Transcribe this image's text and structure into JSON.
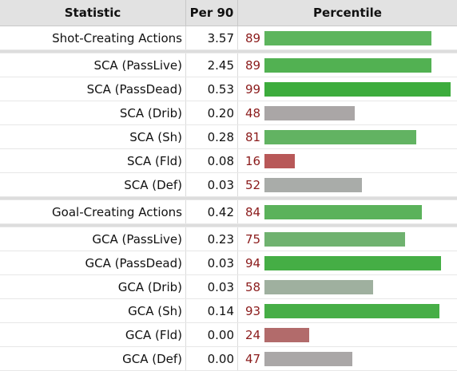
{
  "table": {
    "headers": {
      "statistic": "Statistic",
      "per90": "Per 90",
      "percentile": "Percentile"
    },
    "groups": [
      {
        "rows": [
          {
            "stat": "Shot-Creating Actions",
            "per90": "3.57",
            "percentile": 89,
            "color": "#5db55d"
          }
        ]
      },
      {
        "rows": [
          {
            "stat": "SCA (PassLive)",
            "per90": "2.45",
            "percentile": 89,
            "color": "#52b152"
          },
          {
            "stat": "SCA (PassDead)",
            "per90": "0.53",
            "percentile": 99,
            "color": "#3cac3c"
          },
          {
            "stat": "SCA (Drib)",
            "per90": "0.20",
            "percentile": 48,
            "color": "#aaa6a6"
          },
          {
            "stat": "SCA (Sh)",
            "per90": "0.28",
            "percentile": 81,
            "color": "#62b362"
          },
          {
            "stat": "SCA (Fld)",
            "per90": "0.08",
            "percentile": 16,
            "color": "#b85858"
          },
          {
            "stat": "SCA (Def)",
            "per90": "0.03",
            "percentile": 52,
            "color": "#a9aca9"
          }
        ]
      },
      {
        "rows": [
          {
            "stat": "Goal-Creating Actions",
            "per90": "0.42",
            "percentile": 84,
            "color": "#5bb25b"
          }
        ]
      },
      {
        "rows": [
          {
            "stat": "GCA (PassLive)",
            "per90": "0.23",
            "percentile": 75,
            "color": "#6fb26f"
          },
          {
            "stat": "GCA (PassDead)",
            "per90": "0.03",
            "percentile": 94,
            "color": "#45ae45"
          },
          {
            "stat": "GCA (Drib)",
            "per90": "0.03",
            "percentile": 58,
            "color": "#9fb09f"
          },
          {
            "stat": "GCA (Sh)",
            "per90": "0.14",
            "percentile": 93,
            "color": "#46ae46"
          },
          {
            "stat": "GCA (Fld)",
            "per90": "0.00",
            "percentile": 24,
            "color": "#b26b6b"
          },
          {
            "stat": "GCA (Def)",
            "per90": "0.00",
            "percentile": 47,
            "color": "#aaa7a7"
          }
        ]
      }
    ]
  }
}
